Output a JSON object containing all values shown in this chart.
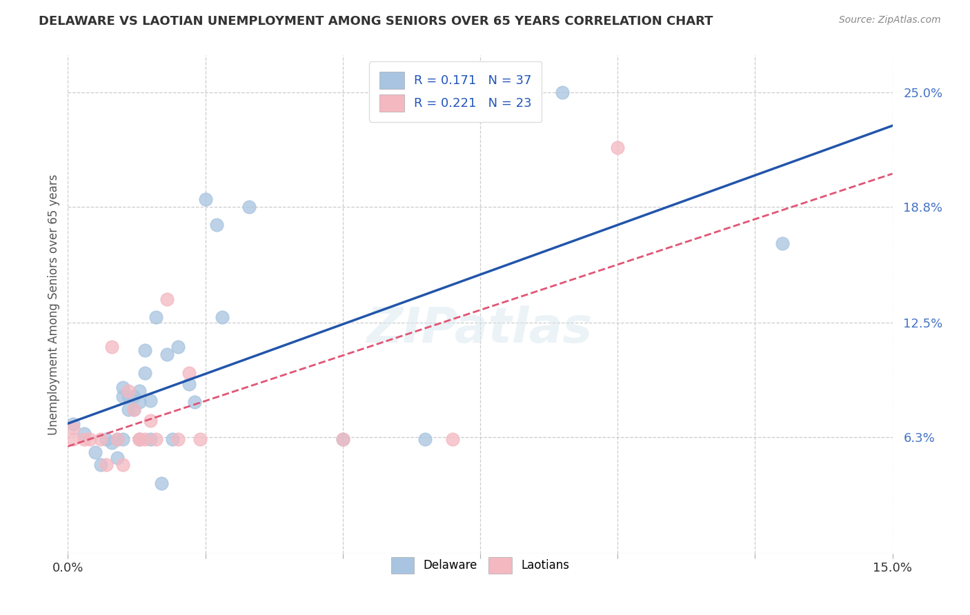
{
  "title": "DELAWARE VS LAOTIAN UNEMPLOYMENT AMONG SENIORS OVER 65 YEARS CORRELATION CHART",
  "source": "Source: ZipAtlas.com",
  "ylabel": "Unemployment Among Seniors over 65 years",
  "xlim": [
    0.0,
    0.15
  ],
  "ylim": [
    0.0,
    0.27
  ],
  "xticks": [
    0.0,
    0.025,
    0.05,
    0.075,
    0.1,
    0.125,
    0.15
  ],
  "xticklabels": [
    "0.0%",
    "",
    "",
    "",
    "",
    "",
    "15.0%"
  ],
  "ytick_right_labels": [
    "25.0%",
    "18.8%",
    "12.5%",
    "6.3%"
  ],
  "ytick_right_values": [
    0.25,
    0.188,
    0.125,
    0.063
  ],
  "delaware_R": 0.171,
  "delaware_N": 37,
  "laotian_R": 0.221,
  "laotian_N": 23,
  "delaware_color": "#a8c4e0",
  "laotian_color": "#f4b8c1",
  "delaware_line_color": "#2255aa",
  "laotian_line_color": "#e05575",
  "background_color": "#ffffff",
  "grid_color": "#cccccc",
  "delaware_x": [
    0.001,
    0.003,
    0.005,
    0.006,
    0.007,
    0.008,
    0.009,
    0.009,
    0.01,
    0.01,
    0.01,
    0.011,
    0.011,
    0.012,
    0.012,
    0.013,
    0.013,
    0.013,
    0.014,
    0.014,
    0.015,
    0.015,
    0.016,
    0.017,
    0.018,
    0.019,
    0.02,
    0.022,
    0.023,
    0.025,
    0.027,
    0.028,
    0.033,
    0.05,
    0.065,
    0.09,
    0.13
  ],
  "delaware_y": [
    0.07,
    0.065,
    0.055,
    0.048,
    0.062,
    0.06,
    0.062,
    0.052,
    0.09,
    0.085,
    0.062,
    0.085,
    0.078,
    0.085,
    0.078,
    0.088,
    0.082,
    0.062,
    0.11,
    0.098,
    0.083,
    0.062,
    0.128,
    0.038,
    0.108,
    0.062,
    0.112,
    0.092,
    0.082,
    0.192,
    0.178,
    0.128,
    0.188,
    0.062,
    0.062,
    0.25,
    0.168
  ],
  "laotian_x": [
    0.001,
    0.001,
    0.003,
    0.004,
    0.006,
    0.007,
    0.008,
    0.009,
    0.01,
    0.011,
    0.012,
    0.013,
    0.013,
    0.014,
    0.015,
    0.016,
    0.018,
    0.02,
    0.022,
    0.024,
    0.05,
    0.07,
    0.1
  ],
  "laotian_y": [
    0.068,
    0.062,
    0.062,
    0.062,
    0.062,
    0.048,
    0.112,
    0.062,
    0.048,
    0.088,
    0.078,
    0.062,
    0.062,
    0.062,
    0.072,
    0.062,
    0.138,
    0.062,
    0.098,
    0.062,
    0.062,
    0.062,
    0.22
  ],
  "watermark": "ZIPatlas"
}
